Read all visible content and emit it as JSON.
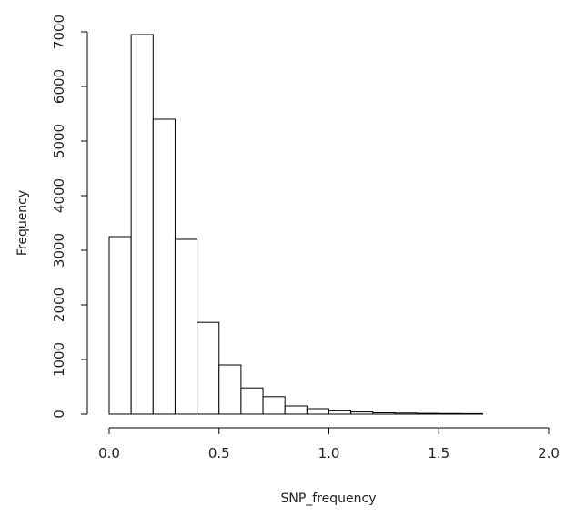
{
  "chart_data": {
    "type": "bar",
    "title": "",
    "xlabel": "SNP_frequency",
    "ylabel": "Frequency",
    "bin_edges": [
      0.0,
      0.1,
      0.2,
      0.3,
      0.4,
      0.5,
      0.6,
      0.7,
      0.8,
      0.9,
      1.0,
      1.1,
      1.2,
      1.3,
      1.4,
      1.5,
      1.6,
      1.7,
      1.8,
      1.9,
      2.0
    ],
    "values": [
      3250,
      6950,
      5400,
      3200,
      1680,
      900,
      480,
      320,
      150,
      100,
      60,
      40,
      25,
      20,
      15,
      12,
      10,
      0,
      0,
      0
    ],
    "xlim": [
      0.0,
      2.0
    ],
    "ylim": [
      0,
      7000
    ],
    "xticks": [
      "0.0",
      "0.5",
      "1.0",
      "1.5",
      "2.0"
    ],
    "xtick_values": [
      0.0,
      0.5,
      1.0,
      1.5,
      2.0
    ],
    "yticks": [
      "0",
      "1000",
      "2000",
      "3000",
      "4000",
      "5000",
      "6000",
      "7000"
    ],
    "ytick_values": [
      0,
      1000,
      2000,
      3000,
      4000,
      5000,
      6000,
      7000
    ],
    "grid": false,
    "legend": "none"
  }
}
